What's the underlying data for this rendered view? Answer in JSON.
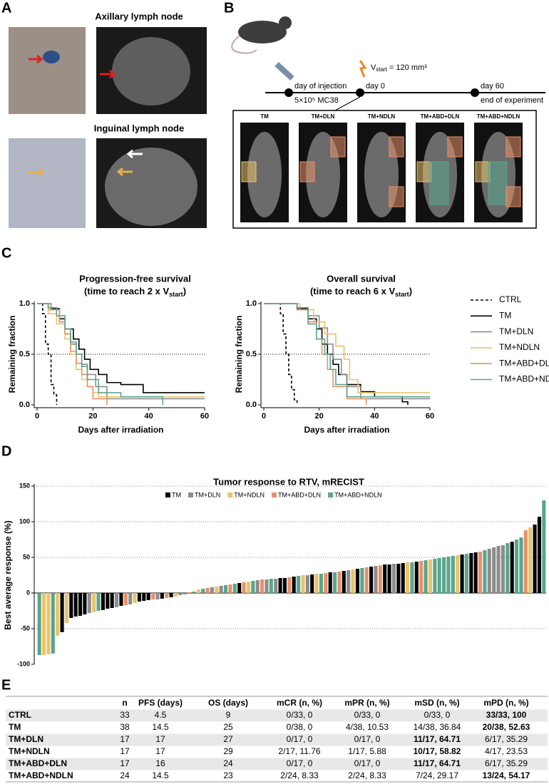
{
  "panels": {
    "a": "A",
    "b": "B",
    "c": "C",
    "d": "D",
    "e": "E"
  },
  "panel_a": {
    "top_title": "Axillary lymph node",
    "bottom_title": "Inguinal lymph node"
  },
  "panel_b": {
    "injection_label": "day of injection",
    "injection_dose": "5×10⁵ MC38",
    "vstart_v": "V",
    "vstart_sub": "start",
    "vstart_rest": " = 120 mm³",
    "day0": "day 0",
    "day60": "day 60",
    "end_label": "end of experiment",
    "groups": [
      "TM",
      "TM+DLN",
      "TM+NDLN",
      "TM+ABD+DLN",
      "TM+ABD+NDLN"
    ]
  },
  "chart_data": [
    {
      "type": "survival",
      "title": "Progression-free survival",
      "subtitle_pre": "(time to reach 2 x V",
      "subtitle_sub": "start",
      "subtitle_post": ")",
      "xlabel": "Days after irradiation",
      "ylabel": "Remaining fraction",
      "xlim": [
        0,
        60
      ],
      "xticks": [
        0,
        20,
        40,
        60
      ],
      "ylim": [
        0,
        1
      ],
      "yticks": [
        {
          "value": 0,
          "label": "0.0"
        },
        {
          "value": 0.5,
          "label": "0.5"
        },
        {
          "value": 1,
          "label": "1.0"
        }
      ],
      "hline": 0.5,
      "series": [
        {
          "name": "CTRL",
          "color": "#000000",
          "dash": true,
          "x": [
            0,
            2,
            3,
            4,
            5,
            6,
            7
          ],
          "values": [
            1,
            0.9,
            0.6,
            0.5,
            0.2,
            0.1,
            0
          ]
        },
        {
          "name": "TM",
          "color": "#000000",
          "x": [
            0,
            5,
            8,
            10,
            13,
            15,
            17,
            19,
            22,
            25,
            30,
            38,
            60
          ],
          "values": [
            1,
            0.95,
            0.85,
            0.75,
            0.65,
            0.55,
            0.45,
            0.35,
            0.3,
            0.22,
            0.2,
            0.12,
            0.12
          ]
        },
        {
          "name": "TM+DLN",
          "color": "#8c8c8c",
          "x": [
            0,
            4,
            8,
            10,
            12,
            14,
            16,
            18,
            21,
            25,
            60
          ],
          "values": [
            1,
            0.94,
            0.82,
            0.7,
            0.6,
            0.5,
            0.4,
            0.3,
            0.18,
            0.06,
            0.06
          ]
        },
        {
          "name": "TM+NDLN",
          "color": "#e9c46a",
          "x": [
            0,
            4,
            7,
            10,
            12,
            14,
            16,
            18,
            20,
            22,
            60
          ],
          "values": [
            1,
            0.9,
            0.8,
            0.65,
            0.5,
            0.35,
            0.25,
            0.18,
            0.12,
            0.08,
            0.08
          ]
        },
        {
          "name": "TM+ABD+DLN",
          "color": "#e8916a",
          "x": [
            0,
            5,
            8,
            10,
            12,
            14,
            16,
            18,
            20,
            25
          ],
          "values": [
            1,
            0.94,
            0.82,
            0.7,
            0.53,
            0.41,
            0.3,
            0.18,
            0.06,
            0
          ]
        },
        {
          "name": "TM+ABD+NDLN",
          "color": "#5aa58e",
          "x": [
            0,
            4,
            7,
            10,
            12,
            14,
            16,
            18,
            22,
            30,
            45
          ],
          "values": [
            1,
            0.96,
            0.88,
            0.75,
            0.62,
            0.5,
            0.38,
            0.25,
            0.12,
            0.08,
            0
          ]
        }
      ]
    },
    {
      "type": "survival",
      "title": "Overall survival",
      "subtitle_pre": "(time to reach 6 x V",
      "subtitle_sub": "start",
      "subtitle_post": ")",
      "xlabel": "Days after irradiation",
      "ylabel": "Remaining fraction",
      "xlim": [
        0,
        60
      ],
      "xticks": [
        0,
        20,
        40,
        60
      ],
      "ylim": [
        0,
        1
      ],
      "yticks": [
        {
          "value": 0,
          "label": "0.0"
        },
        {
          "value": 0.5,
          "label": "0.5"
        },
        {
          "value": 1,
          "label": "1.0"
        }
      ],
      "hline": 0.5,
      "series": [
        {
          "color": "#000000",
          "dash": true,
          "x": [
            0,
            6,
            7,
            8,
            9,
            10,
            11,
            12
          ],
          "values": [
            1,
            0.9,
            0.7,
            0.5,
            0.3,
            0.15,
            0.05,
            0
          ]
        },
        {
          "color": "#000000",
          "x": [
            0,
            12,
            16,
            19,
            21,
            23,
            25,
            27,
            30,
            35,
            40,
            50,
            52
          ],
          "values": [
            1,
            0.95,
            0.85,
            0.75,
            0.6,
            0.5,
            0.4,
            0.3,
            0.2,
            0.13,
            0.08,
            0.03,
            0
          ]
        },
        {
          "color": "#8c8c8c",
          "x": [
            0,
            12,
            16,
            20,
            23,
            25,
            28,
            30,
            35,
            60
          ],
          "values": [
            1,
            0.94,
            0.88,
            0.76,
            0.6,
            0.45,
            0.3,
            0.18,
            0.06,
            0.06
          ]
        },
        {
          "color": "#e9c46a",
          "x": [
            0,
            13,
            18,
            22,
            26,
            29,
            31,
            34,
            60
          ],
          "values": [
            1,
            0.94,
            0.82,
            0.7,
            0.58,
            0.45,
            0.25,
            0.12,
            0.12
          ]
        },
        {
          "color": "#e8916a",
          "x": [
            0,
            12,
            16,
            19,
            21,
            23,
            25,
            30,
            37
          ],
          "values": [
            1,
            0.94,
            0.82,
            0.65,
            0.5,
            0.35,
            0.18,
            0.06,
            0
          ]
        },
        {
          "color": "#5aa58e",
          "x": [
            0,
            12,
            16,
            19,
            22,
            24,
            26,
            30,
            60
          ],
          "values": [
            1,
            0.96,
            0.8,
            0.65,
            0.5,
            0.35,
            0.2,
            0.08,
            0.08
          ]
        }
      ]
    },
    {
      "type": "waterfall",
      "title": "Tumor response to RTV, mRECIST",
      "ylabel": "Best average response (%)",
      "ylim": [
        -100,
        150
      ],
      "yticks": [
        -100,
        -50,
        0,
        50,
        100,
        150
      ],
      "grid": "dotted",
      "series": [
        {
          "name": "TM",
          "color": "#000000"
        },
        {
          "name": "TM+DLN",
          "color": "#8c8c8c"
        },
        {
          "name": "TM+NDLN",
          "color": "#e9c46a"
        },
        {
          "name": "TM+ABD+DLN",
          "color": "#e8916a"
        },
        {
          "name": "TM+ABD+NDLN",
          "color": "#5aa58e"
        }
      ],
      "bars": [
        {
          "series": 4,
          "value": -87
        },
        {
          "series": 2,
          "value": -87
        },
        {
          "series": 2,
          "value": -86
        },
        {
          "series": 4,
          "value": -85
        },
        {
          "series": 2,
          "value": -60
        },
        {
          "series": 0,
          "value": -55
        },
        {
          "series": 2,
          "value": -42
        },
        {
          "series": 0,
          "value": -35
        },
        {
          "series": 0,
          "value": -33
        },
        {
          "series": 0,
          "value": -32
        },
        {
          "series": 0,
          "value": -30
        },
        {
          "series": 1,
          "value": -28
        },
        {
          "series": 2,
          "value": -27
        },
        {
          "series": 4,
          "value": -25
        },
        {
          "series": 0,
          "value": -24
        },
        {
          "series": 0,
          "value": -22
        },
        {
          "series": 0,
          "value": -21
        },
        {
          "series": 1,
          "value": -20
        },
        {
          "series": 0,
          "value": -18
        },
        {
          "series": 3,
          "value": -17
        },
        {
          "series": 1,
          "value": -16
        },
        {
          "series": 2,
          "value": -14
        },
        {
          "series": 0,
          "value": -12
        },
        {
          "series": 0,
          "value": -11
        },
        {
          "series": 0,
          "value": -10
        },
        {
          "series": 3,
          "value": -9
        },
        {
          "series": 1,
          "value": -9
        },
        {
          "series": 0,
          "value": -8
        },
        {
          "series": 3,
          "value": -7
        },
        {
          "series": 0,
          "value": -6
        },
        {
          "series": 2,
          "value": -5
        },
        {
          "series": 1,
          "value": -3
        },
        {
          "series": 1,
          "value": -2
        },
        {
          "series": 3,
          "value": 1
        },
        {
          "series": 4,
          "value": 2
        },
        {
          "series": 2,
          "value": 5
        },
        {
          "series": 4,
          "value": 6
        },
        {
          "series": 3,
          "value": 7
        },
        {
          "series": 1,
          "value": 8
        },
        {
          "series": 2,
          "value": 9
        },
        {
          "series": 1,
          "value": 10
        },
        {
          "series": 4,
          "value": 11
        },
        {
          "series": 3,
          "value": 12
        },
        {
          "series": 4,
          "value": 13
        },
        {
          "series": 0,
          "value": 14
        },
        {
          "series": 3,
          "value": 15
        },
        {
          "series": 2,
          "value": 16
        },
        {
          "series": 4,
          "value": 17
        },
        {
          "series": 1,
          "value": 18
        },
        {
          "series": 3,
          "value": 19
        },
        {
          "series": 1,
          "value": 19
        },
        {
          "series": 4,
          "value": 20
        },
        {
          "series": 1,
          "value": 20
        },
        {
          "series": 0,
          "value": 21
        },
        {
          "series": 0,
          "value": 21
        },
        {
          "series": 3,
          "value": 22
        },
        {
          "series": 0,
          "value": 23
        },
        {
          "series": 4,
          "value": 24
        },
        {
          "series": 2,
          "value": 25
        },
        {
          "series": 1,
          "value": 25
        },
        {
          "series": 0,
          "value": 26
        },
        {
          "series": 2,
          "value": 27
        },
        {
          "series": 4,
          "value": 27
        },
        {
          "series": 3,
          "value": 28
        },
        {
          "series": 0,
          "value": 29
        },
        {
          "series": 4,
          "value": 29
        },
        {
          "series": 3,
          "value": 30
        },
        {
          "series": 0,
          "value": 31
        },
        {
          "series": 1,
          "value": 32
        },
        {
          "series": 2,
          "value": 33
        },
        {
          "series": 0,
          "value": 34
        },
        {
          "series": 4,
          "value": 35
        },
        {
          "series": 3,
          "value": 36
        },
        {
          "series": 0,
          "value": 37
        },
        {
          "series": 1,
          "value": 38
        },
        {
          "series": 3,
          "value": 39
        },
        {
          "series": 0,
          "value": 40
        },
        {
          "series": 0,
          "value": 40
        },
        {
          "series": 1,
          "value": 41
        },
        {
          "series": 0,
          "value": 41
        },
        {
          "series": 0,
          "value": 42
        },
        {
          "series": 2,
          "value": 43
        },
        {
          "series": 4,
          "value": 43
        },
        {
          "series": 0,
          "value": 44
        },
        {
          "series": 3,
          "value": 45
        },
        {
          "series": 4,
          "value": 46
        },
        {
          "series": 2,
          "value": 47
        },
        {
          "series": 4,
          "value": 48
        },
        {
          "series": 4,
          "value": 49
        },
        {
          "series": 4,
          "value": 50
        },
        {
          "series": 4,
          "value": 51
        },
        {
          "series": 4,
          "value": 52
        },
        {
          "series": 2,
          "value": 53
        },
        {
          "series": 0,
          "value": 54
        },
        {
          "series": 4,
          "value": 55
        },
        {
          "series": 0,
          "value": 56
        },
        {
          "series": 0,
          "value": 57
        },
        {
          "series": 3,
          "value": 58
        },
        {
          "series": 4,
          "value": 60
        },
        {
          "series": 1,
          "value": 62
        },
        {
          "series": 1,
          "value": 64
        },
        {
          "series": 1,
          "value": 66
        },
        {
          "series": 1,
          "value": 67
        },
        {
          "series": 4,
          "value": 70
        },
        {
          "series": 0,
          "value": 72
        },
        {
          "series": 4,
          "value": 75
        },
        {
          "series": 4,
          "value": 78
        },
        {
          "series": 3,
          "value": 88
        },
        {
          "series": 2,
          "value": 92
        },
        {
          "series": 0,
          "value": 96
        },
        {
          "series": 0,
          "value": 107
        },
        {
          "series": 4,
          "value": 130
        }
      ]
    }
  ],
  "table": {
    "columns": [
      "n",
      "PFS (days)",
      "OS (days)",
      "mCR (n, %)",
      "mPR (n, %)",
      "mSD (n, %)",
      "mPD (n, %)"
    ],
    "rows": [
      [
        "CTRL",
        "33",
        "4.5",
        "9",
        "0/33, 0",
        "0/33, 0",
        "0/33, 0",
        "33/33, 100"
      ],
      [
        "TM",
        "38",
        "14.5",
        "25",
        "0/38, 0",
        "4/38, 10.53",
        "14/38, 36.84",
        "20/38, 52.63"
      ],
      [
        "TM+DLN",
        "17",
        "17",
        "27",
        "0/17, 0",
        "0/17, 0",
        "11/17, 64.71",
        "6/17, 35.29"
      ],
      [
        "TM+NDLN",
        "17",
        "17",
        "29",
        "2/17, 11.76",
        "1/17, 5.88",
        "10/17, 58.82",
        "4/17, 23.53"
      ],
      [
        "TM+ABD+DLN",
        "17",
        "16",
        "24",
        "0/17, 0",
        "0/17, 0",
        "11/17, 64.71",
        "6/17, 35.29"
      ],
      [
        "TM+ABD+NDLN",
        "24",
        "14.5",
        "23",
        "2/24, 8.33",
        "2/24, 8.33",
        "7/24, 29.17",
        "13/24, 54.17"
      ]
    ],
    "bold": [
      [
        0,
        7
      ],
      [
        1,
        7
      ],
      [
        2,
        6
      ],
      [
        3,
        6
      ],
      [
        4,
        6
      ],
      [
        5,
        7
      ]
    ]
  }
}
